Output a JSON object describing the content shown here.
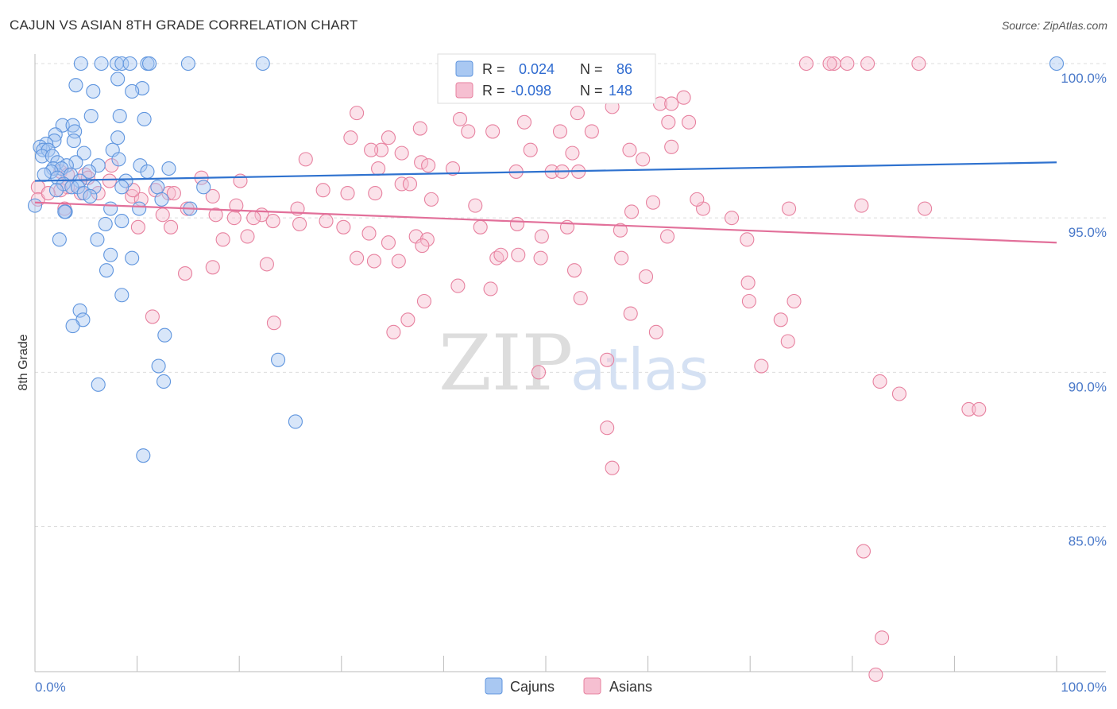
{
  "header": {
    "title": "CAJUN VS ASIAN 8TH GRADE CORRELATION CHART",
    "source": "Source: ZipAtlas.com"
  },
  "watermark": {
    "zip": "ZIP",
    "atlas": "atlas"
  },
  "legend": {
    "rows": [
      {
        "series": "Cajuns",
        "r_label": "R =",
        "r_value": "0.024",
        "n_label": "N =",
        "n_value": "86"
      },
      {
        "series": "Asians",
        "r_label": "R =",
        "r_value": "-0.098",
        "n_label": "N =",
        "n_value": "148"
      }
    ]
  },
  "bottom_legend": {
    "items": [
      "Cajuns",
      "Asians"
    ]
  },
  "colors": {
    "cajun_fill": "#a9c8f2",
    "cajun_stroke": "#5f95de",
    "cajun_line": "#2f72cf",
    "asian_fill": "#f6bfd1",
    "asian_stroke": "#e7819f",
    "asian_line": "#e2709a",
    "tick_label": "#4a79c9",
    "grid": "#dcdcdc"
  },
  "chart_data": {
    "type": "scatter",
    "xlabel": "",
    "ylabel": "8th Grade",
    "xlim": [
      0,
      100
    ],
    "ylim": [
      80.3,
      100.9
    ],
    "x_tick_labels": [
      {
        "value": 0,
        "label": "0.0%"
      },
      {
        "value": 100,
        "label": "100.0%"
      }
    ],
    "y_ticks": [
      {
        "value": 100,
        "label": "100.0%"
      },
      {
        "value": 95,
        "label": "95.0%"
      },
      {
        "value": 90,
        "label": "90.0%"
      },
      {
        "value": 85,
        "label": "85.0%"
      }
    ],
    "grid": true,
    "legend_position": "top-center",
    "series": [
      {
        "name": "Cajuns",
        "trend": {
          "x": [
            0,
            100
          ],
          "y": [
            96.2,
            96.8
          ]
        },
        "points": [
          [
            4.5,
            100
          ],
          [
            6.5,
            100
          ],
          [
            8,
            100
          ],
          [
            8.5,
            100
          ],
          [
            9.3,
            100
          ],
          [
            11,
            100
          ],
          [
            11.2,
            100
          ],
          [
            15,
            100
          ],
          [
            22.3,
            100
          ],
          [
            100,
            100
          ],
          [
            8.1,
            99.5
          ],
          [
            4,
            99.3
          ],
          [
            10.5,
            99.2
          ],
          [
            5.7,
            99.1
          ],
          [
            9.5,
            99.1
          ],
          [
            5.5,
            98.3
          ],
          [
            8.3,
            98.3
          ],
          [
            10.7,
            98.2
          ],
          [
            2.7,
            98
          ],
          [
            3.7,
            98
          ],
          [
            3.9,
            97.8
          ],
          [
            2,
            97.7
          ],
          [
            8.1,
            97.6
          ],
          [
            3.8,
            97.5
          ],
          [
            1.9,
            97.5
          ],
          [
            1.1,
            97.4
          ],
          [
            0.5,
            97.3
          ],
          [
            0.8,
            97.2
          ],
          [
            1.3,
            97.2
          ],
          [
            7.6,
            97.2
          ],
          [
            4.8,
            97.1
          ],
          [
            0.7,
            97
          ],
          [
            1.7,
            97
          ],
          [
            8.2,
            96.9
          ],
          [
            2.2,
            96.8
          ],
          [
            4,
            96.8
          ],
          [
            3.1,
            96.7
          ],
          [
            6.2,
            96.7
          ],
          [
            10.3,
            96.7
          ],
          [
            1.8,
            96.6
          ],
          [
            2.6,
            96.6
          ],
          [
            13.1,
            96.6
          ],
          [
            1.6,
            96.5
          ],
          [
            5.3,
            96.5
          ],
          [
            11,
            96.5
          ],
          [
            0.9,
            96.4
          ],
          [
            3.5,
            96.4
          ],
          [
            2.2,
            96.3
          ],
          [
            4.4,
            96.2
          ],
          [
            8.9,
            96.2
          ],
          [
            2.8,
            96.1
          ],
          [
            3.6,
            96
          ],
          [
            5.8,
            96
          ],
          [
            8.5,
            96
          ],
          [
            4.2,
            96
          ],
          [
            12,
            96
          ],
          [
            16.5,
            96
          ],
          [
            2.1,
            95.9
          ],
          [
            4.8,
            95.8
          ],
          [
            5.4,
            95.7
          ],
          [
            12.4,
            95.6
          ],
          [
            0,
            95.4
          ],
          [
            7.4,
            95.3
          ],
          [
            10.2,
            95.3
          ],
          [
            15.2,
            95.3
          ],
          [
            3,
            95.2
          ],
          [
            2.9,
            95.2
          ],
          [
            6.9,
            94.8
          ],
          [
            8.5,
            94.9
          ],
          [
            2.4,
            94.3
          ],
          [
            6.1,
            94.3
          ],
          [
            7.4,
            93.8
          ],
          [
            9.5,
            93.7
          ],
          [
            7,
            93.3
          ],
          [
            8.5,
            92.5
          ],
          [
            4.4,
            92
          ],
          [
            4.7,
            91.7
          ],
          [
            3.7,
            91.5
          ],
          [
            12.7,
            91.2
          ],
          [
            23.8,
            90.4
          ],
          [
            12.1,
            90.2
          ],
          [
            12.6,
            89.7
          ],
          [
            6.2,
            89.6
          ],
          [
            25.5,
            88.4
          ],
          [
            10.6,
            87.3
          ]
        ]
      },
      {
        "name": "Asians",
        "trend": {
          "x": [
            0,
            100
          ],
          "y": [
            95.5,
            94.2
          ]
        },
        "points": [
          [
            75.5,
            100
          ],
          [
            78.2,
            100
          ],
          [
            77.8,
            100
          ],
          [
            79.5,
            100
          ],
          [
            81.5,
            100
          ],
          [
            86.5,
            100
          ],
          [
            56.5,
            98.6
          ],
          [
            61.2,
            98.7
          ],
          [
            62.3,
            98.7
          ],
          [
            63.5,
            98.9
          ],
          [
            31.5,
            98.4
          ],
          [
            53.1,
            98.4
          ],
          [
            41.6,
            98.2
          ],
          [
            47.9,
            98.1
          ],
          [
            62,
            98.1
          ],
          [
            64,
            98.1
          ],
          [
            42.4,
            97.8
          ],
          [
            44.8,
            97.8
          ],
          [
            54.5,
            97.8
          ],
          [
            37.7,
            97.9
          ],
          [
            51.4,
            97.8
          ],
          [
            34.6,
            97.6
          ],
          [
            30.9,
            97.6
          ],
          [
            33.9,
            97.2
          ],
          [
            32.9,
            97.2
          ],
          [
            35.9,
            97.1
          ],
          [
            48.5,
            97.2
          ],
          [
            52.6,
            97.1
          ],
          [
            58.2,
            97.2
          ],
          [
            62.3,
            97.3
          ],
          [
            59.5,
            96.9
          ],
          [
            37.8,
            96.8
          ],
          [
            38.5,
            96.7
          ],
          [
            33.6,
            96.6
          ],
          [
            26.5,
            96.9
          ],
          [
            7.5,
            96.7
          ],
          [
            2.5,
            96.5
          ],
          [
            3.2,
            96.4
          ],
          [
            4.9,
            96.4
          ],
          [
            7.3,
            96.2
          ],
          [
            16.3,
            96.3
          ],
          [
            20.1,
            96.2
          ],
          [
            35.9,
            96.1
          ],
          [
            36.7,
            96.1
          ],
          [
            40.9,
            96.6
          ],
          [
            47.1,
            96.5
          ],
          [
            50.6,
            96.5
          ],
          [
            51.6,
            96.5
          ],
          [
            53.2,
            96.5
          ],
          [
            13.1,
            95.8
          ],
          [
            9.5,
            95.7
          ],
          [
            10.4,
            95.6
          ],
          [
            11.8,
            95.9
          ],
          [
            13.6,
            95.8
          ],
          [
            6.2,
            95.8
          ],
          [
            3.2,
            96
          ],
          [
            2.5,
            95.9
          ],
          [
            0.3,
            96
          ],
          [
            0.3,
            95.6
          ],
          [
            5.2,
            96.3
          ],
          [
            1.3,
            95.8
          ],
          [
            4.5,
            95.8
          ],
          [
            9.6,
            95.9
          ],
          [
            17.4,
            95.7
          ],
          [
            19.7,
            95.4
          ],
          [
            22.2,
            95.1
          ],
          [
            25.7,
            95.3
          ],
          [
            28.2,
            95.9
          ],
          [
            30.6,
            95.8
          ],
          [
            33.3,
            95.8
          ],
          [
            38.8,
            95.6
          ],
          [
            43.1,
            95.4
          ],
          [
            58.4,
            95.2
          ],
          [
            60.5,
            95.5
          ],
          [
            65.4,
            95.3
          ],
          [
            64.8,
            95.6
          ],
          [
            68.2,
            95
          ],
          [
            73.8,
            95.3
          ],
          [
            80.9,
            95.4
          ],
          [
            87.1,
            95.3
          ],
          [
            12.5,
            95.1
          ],
          [
            14.9,
            95.3
          ],
          [
            17.7,
            95.1
          ],
          [
            19.5,
            95
          ],
          [
            21.4,
            95
          ],
          [
            23.3,
            94.9
          ],
          [
            25.9,
            94.8
          ],
          [
            28.5,
            94.9
          ],
          [
            30.2,
            94.7
          ],
          [
            32.7,
            94.5
          ],
          [
            34.6,
            94.2
          ],
          [
            37.3,
            94.4
          ],
          [
            38.4,
            94.3
          ],
          [
            43.6,
            94.7
          ],
          [
            47.2,
            94.8
          ],
          [
            52.1,
            94.7
          ],
          [
            57.3,
            94.6
          ],
          [
            61.9,
            94.4
          ],
          [
            69.7,
            94.3
          ],
          [
            10.1,
            94.7
          ],
          [
            13.3,
            94.7
          ],
          [
            2.9,
            95.3
          ],
          [
            18.4,
            94.3
          ],
          [
            20.8,
            94.4
          ],
          [
            22.7,
            93.5
          ],
          [
            31.5,
            93.7
          ],
          [
            33.2,
            93.6
          ],
          [
            35.6,
            93.6
          ],
          [
            37.9,
            94.1
          ],
          [
            45.2,
            93.7
          ],
          [
            45.6,
            93.8
          ],
          [
            49.6,
            94.4
          ],
          [
            47.3,
            93.8
          ],
          [
            49.5,
            93.7
          ],
          [
            52.8,
            93.3
          ],
          [
            57.4,
            93.7
          ],
          [
            59.8,
            93.1
          ],
          [
            69.8,
            92.9
          ],
          [
            74.3,
            92.3
          ],
          [
            69.9,
            92.3
          ],
          [
            60.8,
            91.3
          ],
          [
            73,
            91.7
          ],
          [
            73.7,
            91
          ],
          [
            71.1,
            90.2
          ],
          [
            82.7,
            89.7
          ],
          [
            84.6,
            89.3
          ],
          [
            91.4,
            88.8
          ],
          [
            92.4,
            88.8
          ],
          [
            81.1,
            84.2
          ],
          [
            82.9,
            81.4
          ],
          [
            82.3,
            80.2
          ],
          [
            56.5,
            86.9
          ],
          [
            56,
            88.2
          ],
          [
            49.3,
            90
          ],
          [
            56,
            90.4
          ],
          [
            53.4,
            92.4
          ],
          [
            58.3,
            91.9
          ],
          [
            44.6,
            92.7
          ],
          [
            41.4,
            92.8
          ],
          [
            38.1,
            92.3
          ],
          [
            36.5,
            91.7
          ],
          [
            35.1,
            91.3
          ],
          [
            23.4,
            91.6
          ],
          [
            11.5,
            91.8
          ],
          [
            14.7,
            93.2
          ],
          [
            17.4,
            93.4
          ]
        ]
      }
    ]
  }
}
